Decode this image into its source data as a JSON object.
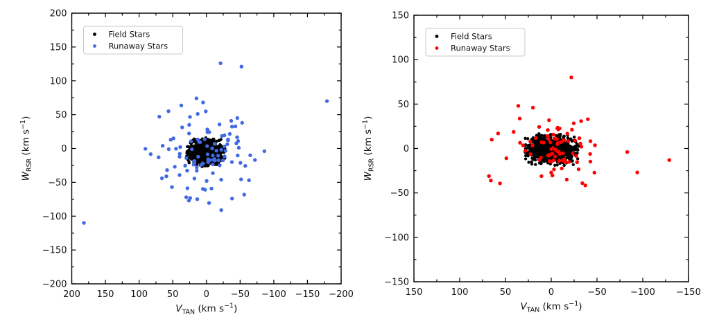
{
  "figure": {
    "background": "#ffffff",
    "axis_color": "#000000",
    "tick_label_fontsize": 13,
    "axis_label_fontsize": 13.5,
    "legend_fontsize": 11.5
  },
  "chart_data": [
    {
      "type": "scatter",
      "panel": "left",
      "title": "",
      "xlabel": {
        "var": "V",
        "sub": "TAN",
        "unit_pre": " (km s",
        "unit_sup": "−1",
        "unit_post": ")"
      },
      "ylabel": {
        "var": "W",
        "sub": "RSR",
        "unit_pre": " (km s",
        "unit_sup": "−1",
        "unit_post": ")"
      },
      "xlim": [
        200,
        -200
      ],
      "ylim": [
        -200,
        200
      ],
      "x_axis_reversed": true,
      "xticks": [
        200,
        150,
        100,
        50,
        0,
        -50,
        -100,
        -150,
        -200
      ],
      "yticks": [
        200,
        150,
        100,
        50,
        0,
        -50,
        -100,
        -150,
        -200
      ],
      "minor_tick_step": 25,
      "grid": false,
      "legend_position": "upper-left",
      "legend": [
        {
          "label": "Field Stars",
          "color": "#000000"
        },
        {
          "label": "Runaway Stars",
          "color": "#4169e1"
        }
      ],
      "series": [
        {
          "name": "Field Stars",
          "color": "#000000",
          "marker_radius": 2.2,
          "cluster": {
            "n": 900,
            "cx": 1,
            "cy": -5,
            "sx": 12.5,
            "sy": 8.5,
            "bound_x": 29,
            "bound_y": 23,
            "seed": 42
          }
        },
        {
          "name": "Runaway Stars",
          "color": "#4169e1",
          "marker_radius": 2.7,
          "cluster": {
            "n": 90,
            "cx": 0,
            "cy": -6,
            "sx": 30,
            "sy": 33,
            "bound_x": 92,
            "bound_y": 93,
            "seed": 7
          },
          "points": [
            [
              182,
              -110
            ],
            [
              -179,
              70
            ],
            [
              -21,
              126
            ],
            [
              -52,
              121
            ],
            [
              5,
              68
            ],
            [
              13,
              51
            ],
            [
              70,
              47
            ],
            [
              49,
              15
            ],
            [
              53,
              13
            ],
            [
              65,
              4
            ],
            [
              56,
              -1
            ],
            [
              71,
              -13
            ],
            [
              47,
              -27
            ],
            [
              66,
              -44
            ],
            [
              -86,
              -4
            ],
            [
              -72,
              -17
            ],
            [
              -65,
              -10
            ],
            [
              -53,
              38
            ],
            [
              -47,
              11
            ],
            [
              -48,
              1
            ],
            [
              30,
              -72
            ],
            [
              26,
              -77
            ],
            [
              -38,
              -74
            ],
            [
              -22,
              -91
            ],
            [
              2,
              -61
            ]
          ]
        }
      ]
    },
    {
      "type": "scatter",
      "panel": "right",
      "title": "",
      "xlabel": {
        "var": "V",
        "sub": "TAN",
        "unit_pre": " (km s",
        "unit_sup": "−1",
        "unit_post": ")"
      },
      "ylabel": {
        "var": "W",
        "sub": "RSR",
        "unit_pre": " (km s",
        "unit_sup": "−1",
        "unit_post": ")"
      },
      "xlim": [
        150,
        -150
      ],
      "ylim": [
        -150,
        150
      ],
      "x_axis_reversed": true,
      "xticks": [
        150,
        100,
        50,
        0,
        -50,
        -100,
        -150
      ],
      "yticks": [
        150,
        100,
        50,
        0,
        -50,
        -100,
        -150
      ],
      "minor_tick_step": 25,
      "grid": false,
      "legend_position": "upper-left",
      "legend": [
        {
          "label": "Field Stars",
          "color": "#000000"
        },
        {
          "label": "Runaway Stars",
          "color": "#ff0000"
        }
      ],
      "series": [
        {
          "name": "Field Stars",
          "color": "#000000",
          "marker_radius": 2.2,
          "cluster": {
            "n": 900,
            "cx": 0,
            "cy": -1,
            "sx": 13,
            "sy": 7.5,
            "bound_x": 30,
            "bound_y": 18,
            "seed": 1234
          }
        },
        {
          "name": "Runaway Stars",
          "color": "#ff0000",
          "marker_radius": 2.7,
          "cluster": {
            "n": 78,
            "cx": -2,
            "cy": -4,
            "sx": 24,
            "sy": 16,
            "bound_x": 70,
            "bound_y": 46,
            "seed": 99
          },
          "points": [
            [
              -22,
              80
            ],
            [
              -129,
              -13
            ],
            [
              -94,
              -27
            ],
            [
              -83,
              -4
            ],
            [
              68,
              -31
            ],
            [
              66,
              -36
            ],
            [
              65,
              10
            ],
            [
              58,
              17
            ],
            [
              49,
              -11
            ],
            [
              36,
              48
            ],
            [
              20,
              46
            ],
            [
              -40,
              33
            ],
            [
              -34,
              -39
            ],
            [
              -17,
              -35
            ]
          ]
        }
      ]
    }
  ]
}
